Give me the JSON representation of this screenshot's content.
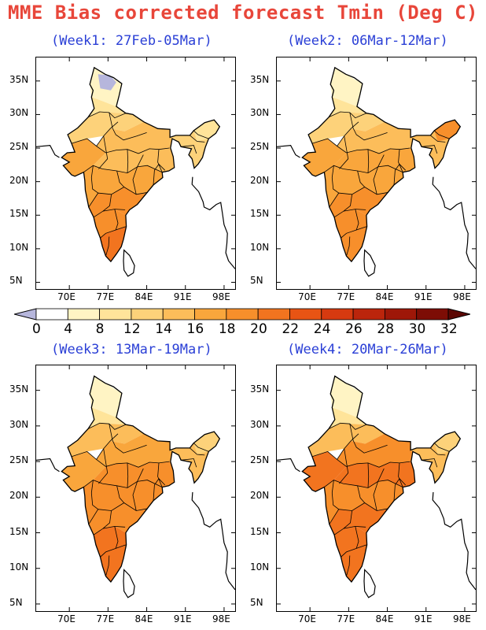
{
  "title": "MME Bias corrected forecast Tmin (Deg C)",
  "panels": [
    {
      "label": "(Week1: 27Feb-05Mar)"
    },
    {
      "label": "(Week2: 06Mar-12Mar)"
    },
    {
      "label": "(Week3: 13Mar-19Mar)"
    },
    {
      "label": "(Week4: 20Mar-26Mar)"
    }
  ],
  "lat_ticks": [
    "35N",
    "30N",
    "25N",
    "20N",
    "15N",
    "10N",
    "5N"
  ],
  "lon_ticks": [
    "70E",
    "77E",
    "84E",
    "91E",
    "98E"
  ],
  "legend": {
    "labels": [
      "0",
      "4",
      "8",
      "12",
      "14",
      "16",
      "18",
      "20",
      "22",
      "24",
      "26",
      "28",
      "30",
      "32"
    ],
    "colors": [
      "#b6b6dc",
      "#ffffff",
      "#fff4c4",
      "#ffe49a",
      "#fdd27a",
      "#fcbd5a",
      "#f9a63c",
      "#f78f2b",
      "#f2741f",
      "#e85414",
      "#d63a10",
      "#bb250c",
      "#9e1708",
      "#7d0d05",
      "#5c0703"
    ]
  },
  "colors": {
    "title": "#e8463a",
    "panel_label": "#2a3fd6"
  }
}
